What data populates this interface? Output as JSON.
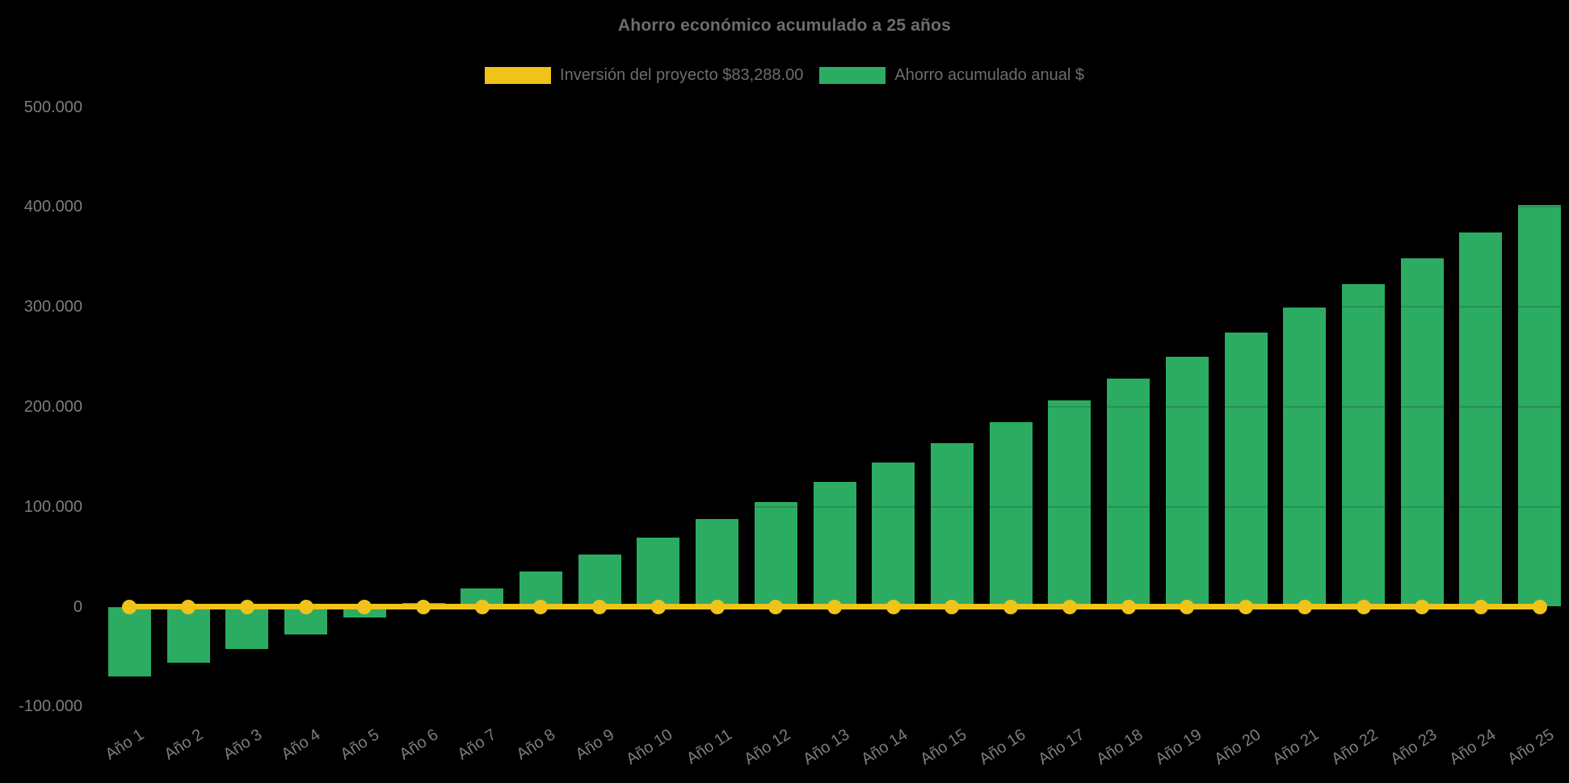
{
  "chart_data": {
    "type": "bar",
    "title": "Ahorro económico acumulado a 25 años",
    "categories": [
      "Año 1",
      "Año 2",
      "Año 3",
      "Año 4",
      "Año 5",
      "Año 6",
      "Año 7",
      "Año 8",
      "Año 9",
      "Año 10",
      "Año 11",
      "Año 12",
      "Año 13",
      "Año 14",
      "Año 15",
      "Año 16",
      "Año 17",
      "Año 18",
      "Año 19",
      "Año 20",
      "Año 21",
      "Año 22",
      "Año 23",
      "Año 24",
      "Año 25"
    ],
    "series": [
      {
        "name": "Inversión del proyecto $83,288.00",
        "type": "line",
        "color": "#EFC319",
        "marker": "circle",
        "values": [
          0,
          0,
          0,
          0,
          0,
          0,
          0,
          0,
          0,
          0,
          0,
          0,
          0,
          0,
          0,
          0,
          0,
          0,
          0,
          0,
          0,
          0,
          0,
          0,
          0
        ]
      },
      {
        "name": "Ahorro acumulado anual $",
        "type": "bar",
        "color": "#2CAC62",
        "values": [
          -69500,
          -56000,
          -42000,
          -27500,
          -10500,
          4000,
          18500,
          35500,
          52000,
          69000,
          87500,
          104500,
          124500,
          144000,
          164000,
          184500,
          206500,
          228000,
          250000,
          274000,
          299000,
          322500,
          348500,
          374500,
          402000
        ]
      }
    ],
    "y_axis": {
      "range": [
        -100000,
        500000
      ],
      "ticks": [
        {
          "label": "500.000",
          "value": 500000
        },
        {
          "label": "400.000",
          "value": 400000
        },
        {
          "label": "300.000",
          "value": 300000
        },
        {
          "label": "200.000",
          "value": 200000
        },
        {
          "label": "100.000",
          "value": 100000
        },
        {
          "label": "0",
          "value": 0
        },
        {
          "label": "-100.000",
          "value": -100000
        }
      ]
    },
    "x_axis": {
      "label_rotation_deg": -33
    },
    "legend_position": "top",
    "grid": "off",
    "background": "#000000",
    "text_color": "#6d6d6d",
    "tick_color": "#7d7d7d"
  }
}
